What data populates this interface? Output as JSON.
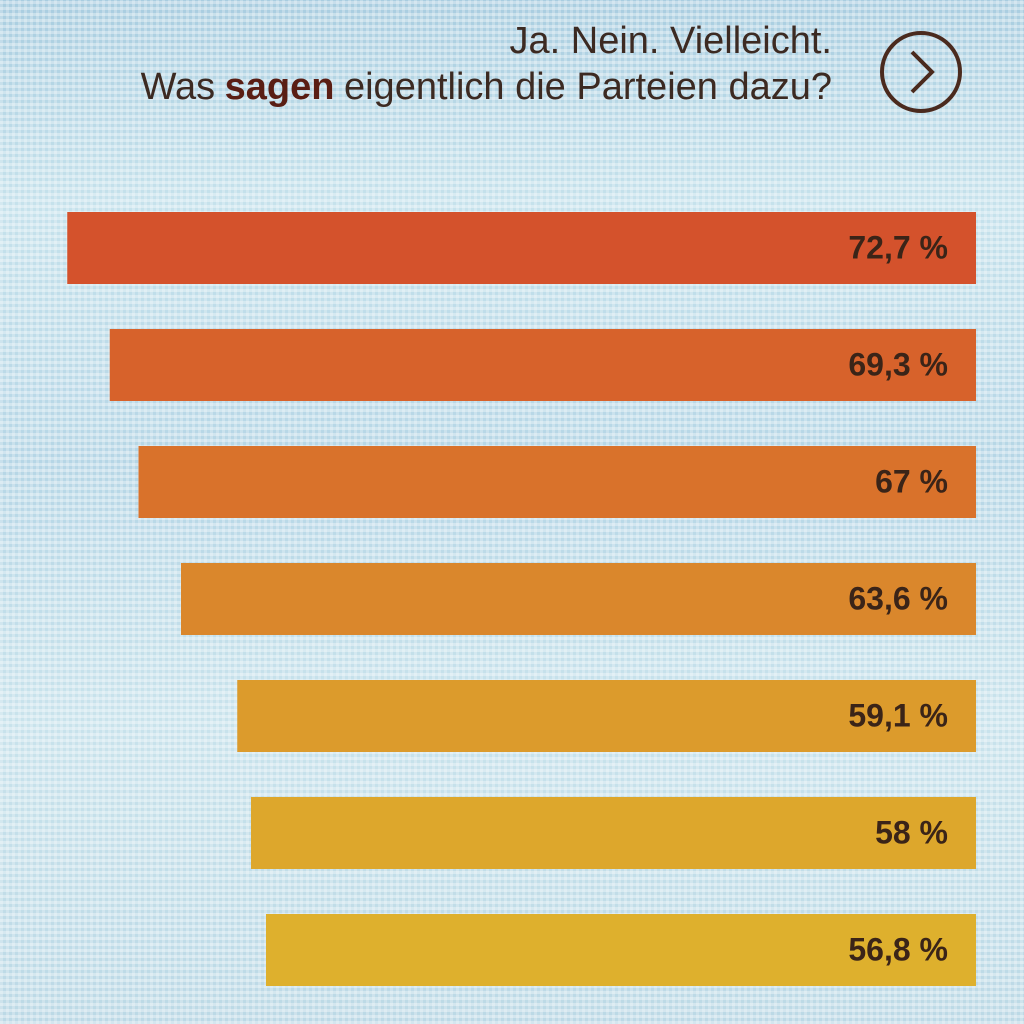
{
  "chart_data": {
    "type": "bar",
    "orientation": "horizontal",
    "title": "Ja. Nein. Vielleicht.",
    "subtitle_parts": [
      "Was",
      "sagen",
      "eigentlich die Parteien dazu?"
    ],
    "values": [
      72.7,
      69.3,
      67,
      63.6,
      59.1,
      58,
      56.8
    ],
    "value_labels": [
      "72,7 %",
      "69,3 %",
      "67 %",
      "63,6 %",
      "59,1 %",
      "58 %",
      "56,8 %"
    ],
    "colors": [
      "#d4522c",
      "#d7622b",
      "#d9722b",
      "#da872c",
      "#dc9b2c",
      "#dda72c",
      "#deb02d"
    ]
  }
}
